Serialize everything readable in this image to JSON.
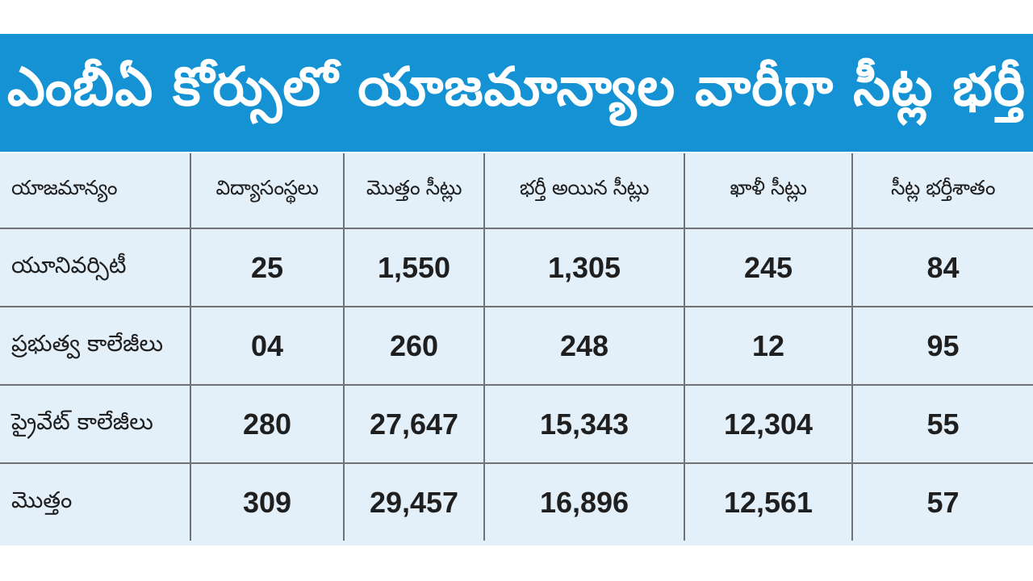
{
  "title": "ఎంబీఏ కోర్సులో యాజమాన్యాల వారీగా సీట్ల భర్తీ",
  "table": {
    "headers": [
      "యాజమాన్యం",
      "విద్యాసంస్థలు",
      "మొత్తం సీట్లు",
      "భర్తీ అయిన సీట్లు",
      "ఖాళీ సీట్లు",
      "సీట్ల భర్తీశాతం"
    ],
    "rows": [
      [
        "యూనివర్సిటీ",
        "25",
        "1,550",
        "1,305",
        "245",
        "84"
      ],
      [
        "ప్రభుత్వ కాలేజీలు",
        "04",
        "260",
        "248",
        "12",
        "95"
      ],
      [
        "ప్రైవేట్ కాలేజీలు",
        "280",
        "27,647",
        "15,343",
        "12,304",
        "55"
      ],
      [
        "మొత్తం",
        "309",
        "29,457",
        "16,896",
        "12,561",
        "57"
      ]
    ]
  },
  "colors": {
    "banner": "#1492d3",
    "table_background": "#e3eff9",
    "grid_lines": "#6f7175",
    "title_text": "#ffffff",
    "body_text": "#1f1f1f"
  }
}
